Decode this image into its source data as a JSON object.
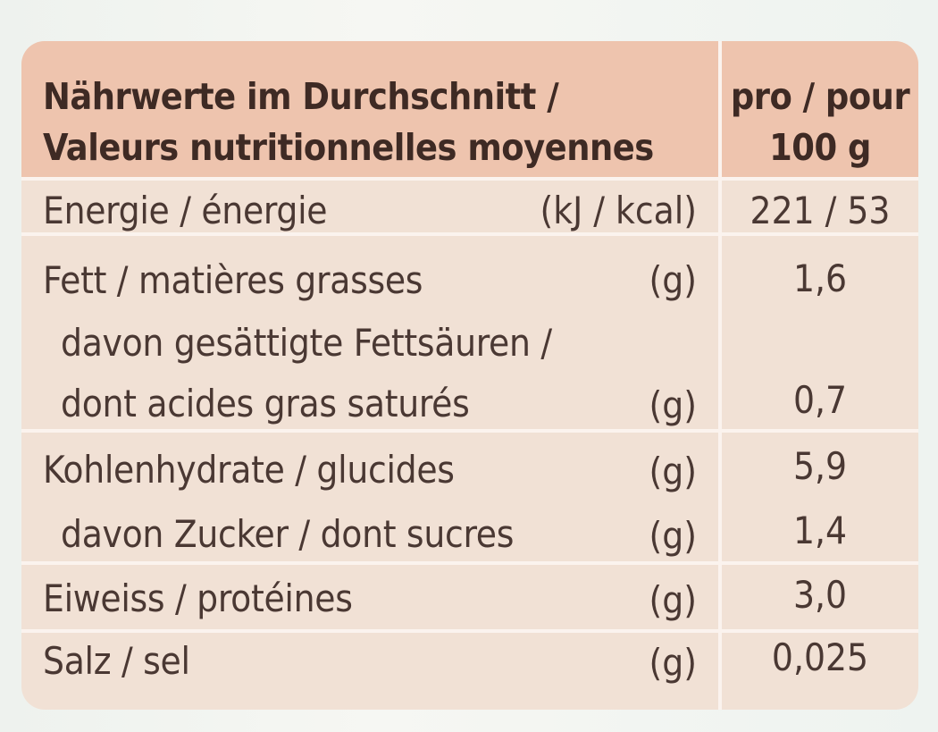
{
  "header": {
    "title_line1": "Nährwerte im Durchschnitt /",
    "title_line2": "Valeurs nutritionnelles moyennes",
    "per_line1": "pro / pour",
    "per_line2": "100 g"
  },
  "rows": [
    {
      "label": "Energie / énergie",
      "unit": "(kJ / kcal)",
      "value": "221 / 53"
    },
    {
      "label": "Fett / matières grasses",
      "unit": "(g)",
      "value": "1,6"
    },
    {
      "label_line1": "davon gesättigte Fettsäuren /",
      "label_line2": "dont acides gras saturés",
      "unit": "(g)",
      "value": "0,7"
    },
    {
      "label": "Kohlenhydrate / glucides",
      "unit": "(g)",
      "value": "5,9"
    },
    {
      "label": "davon Zucker / dont sucres",
      "unit": "(g)",
      "value": "1,4"
    },
    {
      "label": "Eiweiss / protéines",
      "unit": "(g)",
      "value": "3,0"
    },
    {
      "label": "Salz / sel",
      "unit": "(g)",
      "value": "0,025"
    }
  ],
  "colors": {
    "header_bg": "#eec4ae",
    "body_bg": "#f1e1d5",
    "text": "#4a3833"
  }
}
